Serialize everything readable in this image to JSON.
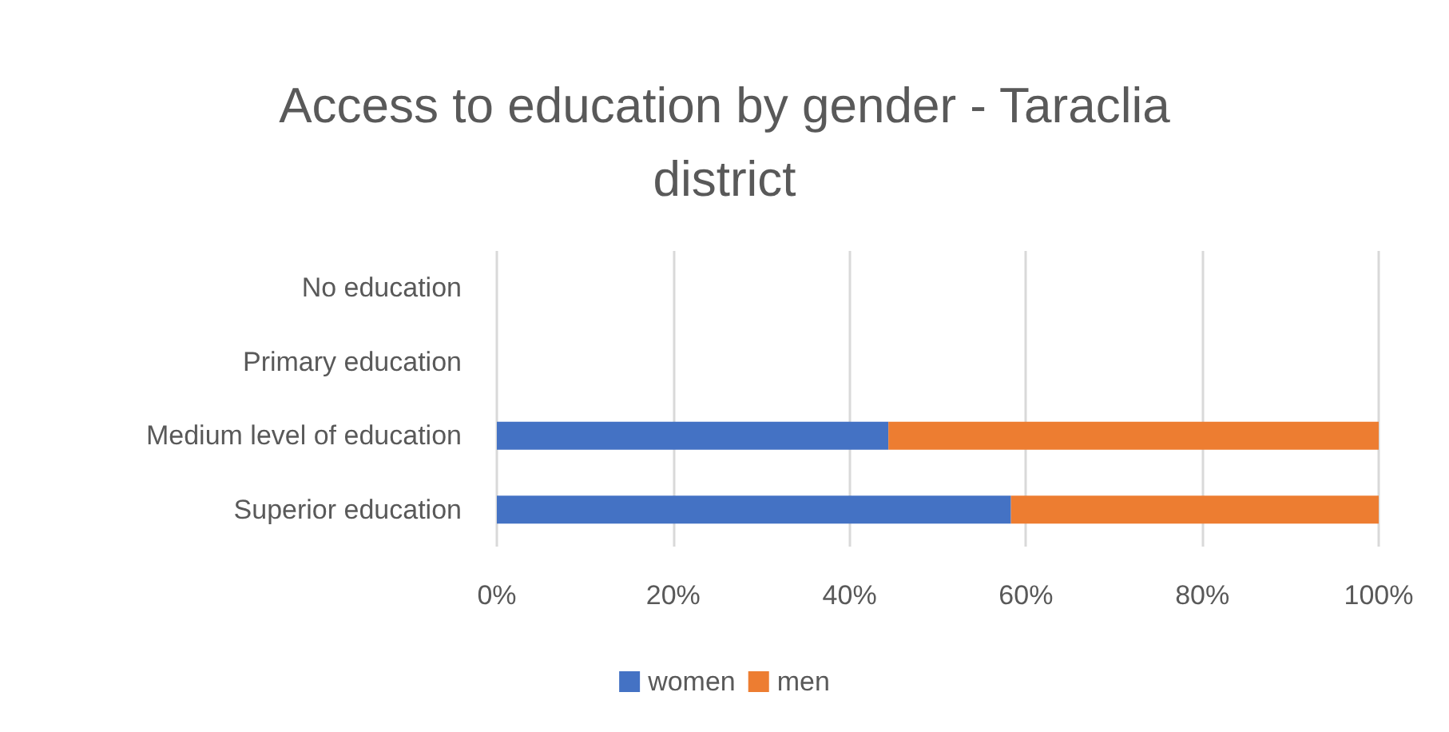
{
  "chart_data": {
    "type": "bar",
    "orientation": "horizontal",
    "stacked": true,
    "title": "Access to education by gender - Taraclia\ndistrict",
    "categories": [
      "No education",
      "Primary education",
      "Medium level of education",
      "Superior education"
    ],
    "series": [
      {
        "name": "women",
        "color": "#4472c4",
        "values": [
          null,
          null,
          44.4,
          58.3
        ]
      },
      {
        "name": "men",
        "color": "#ed7d31",
        "values": [
          null,
          null,
          55.6,
          41.7
        ]
      }
    ],
    "xlim": [
      0,
      100
    ],
    "xticks": [
      {
        "value": 0,
        "label": "0%"
      },
      {
        "value": 20,
        "label": "20%"
      },
      {
        "value": 40,
        "label": "40%"
      },
      {
        "value": 60,
        "label": "60%"
      },
      {
        "value": 80,
        "label": "80%"
      },
      {
        "value": 100,
        "label": "100%"
      }
    ],
    "grid": "x",
    "legend": "bottom"
  }
}
